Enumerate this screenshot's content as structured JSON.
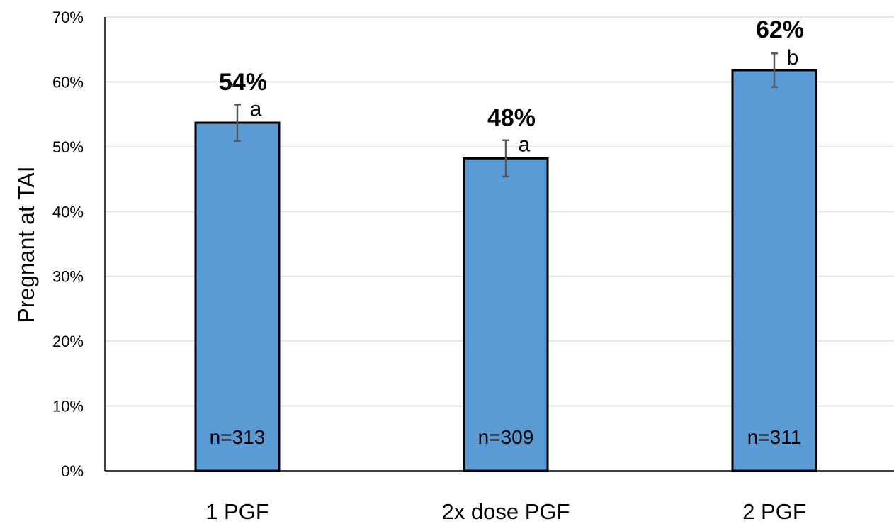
{
  "chart_data": {
    "type": "bar",
    "title": "",
    "xlabel": "",
    "ylabel": "Pregnant at TAI",
    "ylim": [
      0,
      70
    ],
    "y_ticks": [
      0,
      10,
      20,
      30,
      40,
      50,
      60,
      70
    ],
    "y_tick_labels": [
      "0%",
      "10%",
      "20%",
      "30%",
      "40%",
      "50%",
      "60%",
      "70%"
    ],
    "grid": "horizontal",
    "legend": "none",
    "categories": [
      "1 PGF",
      "2x dose PGF",
      "2 PGF"
    ],
    "values": [
      53.7,
      48.2,
      61.8
    ],
    "error": [
      2.8,
      2.8,
      2.6
    ],
    "value_labels": [
      "54%",
      "48%",
      "62%"
    ],
    "significance_letters": [
      "a",
      "a",
      "b"
    ],
    "n_labels": [
      "n=313",
      "n=309",
      "n=311"
    ],
    "colors": {
      "bar_fill": "#5b9bd5",
      "bar_stroke": "#000000",
      "error_bar": "#595959",
      "grid": "#d9d9d9",
      "axis": "#000000"
    }
  }
}
